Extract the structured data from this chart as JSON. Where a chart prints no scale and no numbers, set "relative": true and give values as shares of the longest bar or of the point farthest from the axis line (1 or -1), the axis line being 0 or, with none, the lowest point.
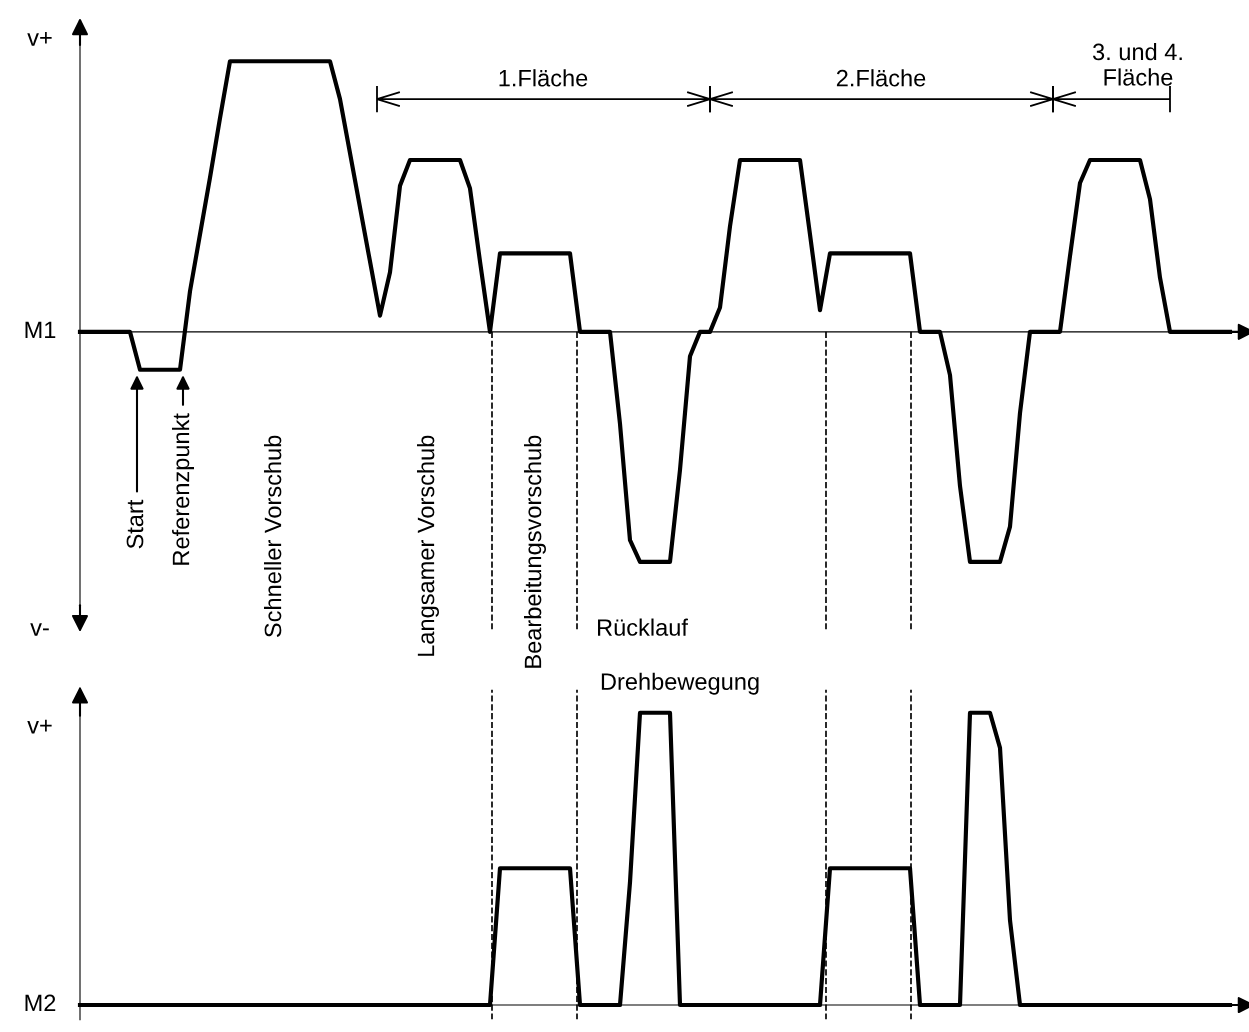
{
  "chart_data": [
    {
      "type": "line",
      "relative": true,
      "marker": "none",
      "line_style": "solid",
      "categories": [
        null,
        null,
        null,
        null,
        null,
        null,
        null,
        null,
        null,
        null,
        null,
        null,
        null,
        null,
        null,
        null,
        null,
        null,
        null,
        null,
        null,
        null,
        null,
        null,
        null,
        null,
        null,
        null,
        null,
        null,
        null,
        null,
        null,
        null,
        null,
        null,
        null,
        null,
        null,
        null,
        null,
        null,
        null,
        null,
        null,
        null,
        null,
        null,
        null,
        null,
        null,
        null,
        null,
        null,
        null,
        null,
        null,
        null,
        null,
        null,
        null,
        null,
        null,
        null,
        null,
        null,
        null,
        null,
        null,
        null,
        null,
        null,
        null,
        null,
        null,
        null,
        null,
        null,
        null,
        null,
        null,
        null,
        null,
        null,
        null,
        null,
        null,
        null,
        null,
        null,
        null,
        null,
        null,
        null,
        null,
        null,
        null,
        null,
        null,
        null,
        null,
        null,
        null,
        null,
        null,
        null,
        null,
        null,
        null,
        null,
        null,
        null,
        null,
        null,
        null,
        null
      ],
      "series": [
        {
          "color": "#000000",
          "values": [
            0,
            0,
            0,
            0,
            0,
            0,
            -0.14,
            -0.14,
            -0.14,
            -0.14,
            -0.14,
            0.15,
            0.36,
            0.57,
            0.79,
            1,
            1,
            1,
            1,
            1,
            1,
            1,
            1,
            1,
            1,
            1,
            0.86,
            0.66,
            0.46,
            0.26,
            0.06,
            0.22,
            0.54,
            0.635,
            0.635,
            0.635,
            0.635,
            0.635,
            0.635,
            0.53,
            0.26,
            0,
            0.29,
            0.29,
            0.29,
            0.29,
            0.29,
            0.29,
            0.29,
            0.29,
            0,
            0,
            0,
            0,
            -0.34,
            -0.77,
            -0.85,
            -0.85,
            -0.85,
            -0.85,
            -0.51,
            -0.09,
            0,
            0,
            0.09,
            0.39,
            0.635,
            0.635,
            0.635,
            0.635,
            0.635,
            0.635,
            0.635,
            0.36,
            0.08,
            0.29,
            0.29,
            0.29,
            0.29,
            0.29,
            0.29,
            0.29,
            0.29,
            0.29,
            0,
            0,
            0,
            -0.16,
            -0.57,
            -0.85,
            -0.85,
            -0.85,
            -0.85,
            -0.72,
            -0.3,
            0,
            0,
            0,
            0,
            0.28,
            0.55,
            0.635,
            0.635,
            0.635,
            0.635,
            0.635,
            0.635,
            0.49,
            0.2,
            0,
            0,
            0,
            0,
            0,
            0,
            0
          ]
        }
      ],
      "annotations": [
        "v+",
        "v-",
        "M1",
        "Start",
        "Referenzpunkt",
        "Schneller Vorschub",
        "Langsamer Vorschub",
        "Bearbeitungsvorschub",
        "Rücklauf",
        "Drehbewegung",
        "1.Fläche",
        "2.Fläche",
        "3. und 4.\nFläche"
      ]
    },
    {
      "type": "line",
      "relative": true,
      "marker": "none",
      "line_style": "solid",
      "categories": [
        null,
        null,
        null,
        null,
        null,
        null,
        null,
        null,
        null,
        null,
        null,
        null,
        null,
        null,
        null,
        null,
        null,
        null,
        null,
        null,
        null,
        null,
        null,
        null,
        null,
        null,
        null,
        null,
        null,
        null,
        null,
        null,
        null,
        null,
        null,
        null,
        null,
        null,
        null,
        null,
        null,
        null,
        null,
        null,
        null,
        null,
        null,
        null,
        null,
        null,
        null,
        null,
        null,
        null,
        null,
        null,
        null,
        null,
        null,
        null,
        null,
        null,
        null,
        null,
        null,
        null,
        null,
        null,
        null,
        null,
        null,
        null,
        null,
        null,
        null,
        null,
        null,
        null,
        null,
        null,
        null,
        null,
        null,
        null,
        null,
        null,
        null,
        null,
        null,
        null,
        null,
        null,
        null,
        null,
        null,
        null,
        null,
        null,
        null,
        null,
        null,
        null,
        null,
        null,
        null,
        null,
        null,
        null,
        null,
        null,
        null,
        null,
        null,
        null,
        null,
        null
      ],
      "series": [
        {
          "color": "#000000",
          "values": [
            0,
            0,
            0,
            0,
            0,
            0,
            0,
            0,
            0,
            0,
            0,
            0,
            0,
            0,
            0,
            0,
            0,
            0,
            0,
            0,
            0,
            0,
            0,
            0,
            0,
            0,
            0,
            0,
            0,
            0,
            0,
            0,
            0,
            0,
            0,
            0,
            0,
            0,
            0,
            0,
            0,
            0,
            0.468,
            0.468,
            0.468,
            0.468,
            0.468,
            0.468,
            0.468,
            0.468,
            0,
            0,
            0,
            0,
            0,
            0.42,
            1,
            1,
            1,
            1,
            0,
            0,
            0,
            0,
            0,
            0,
            0,
            0,
            0,
            0,
            0,
            0,
            0,
            0,
            0,
            0.468,
            0.468,
            0.468,
            0.468,
            0.468,
            0.468,
            0.468,
            0.468,
            0.468,
            0,
            0,
            0,
            0,
            0,
            1,
            1,
            1,
            0.88,
            0.29,
            0,
            0,
            0,
            0,
            0,
            0,
            0,
            0,
            0,
            0,
            0,
            0,
            0,
            0,
            0,
            0,
            0,
            0,
            0,
            0,
            0,
            0
          ]
        }
      ],
      "annotations": [
        "v+",
        "M2"
      ]
    }
  ]
}
